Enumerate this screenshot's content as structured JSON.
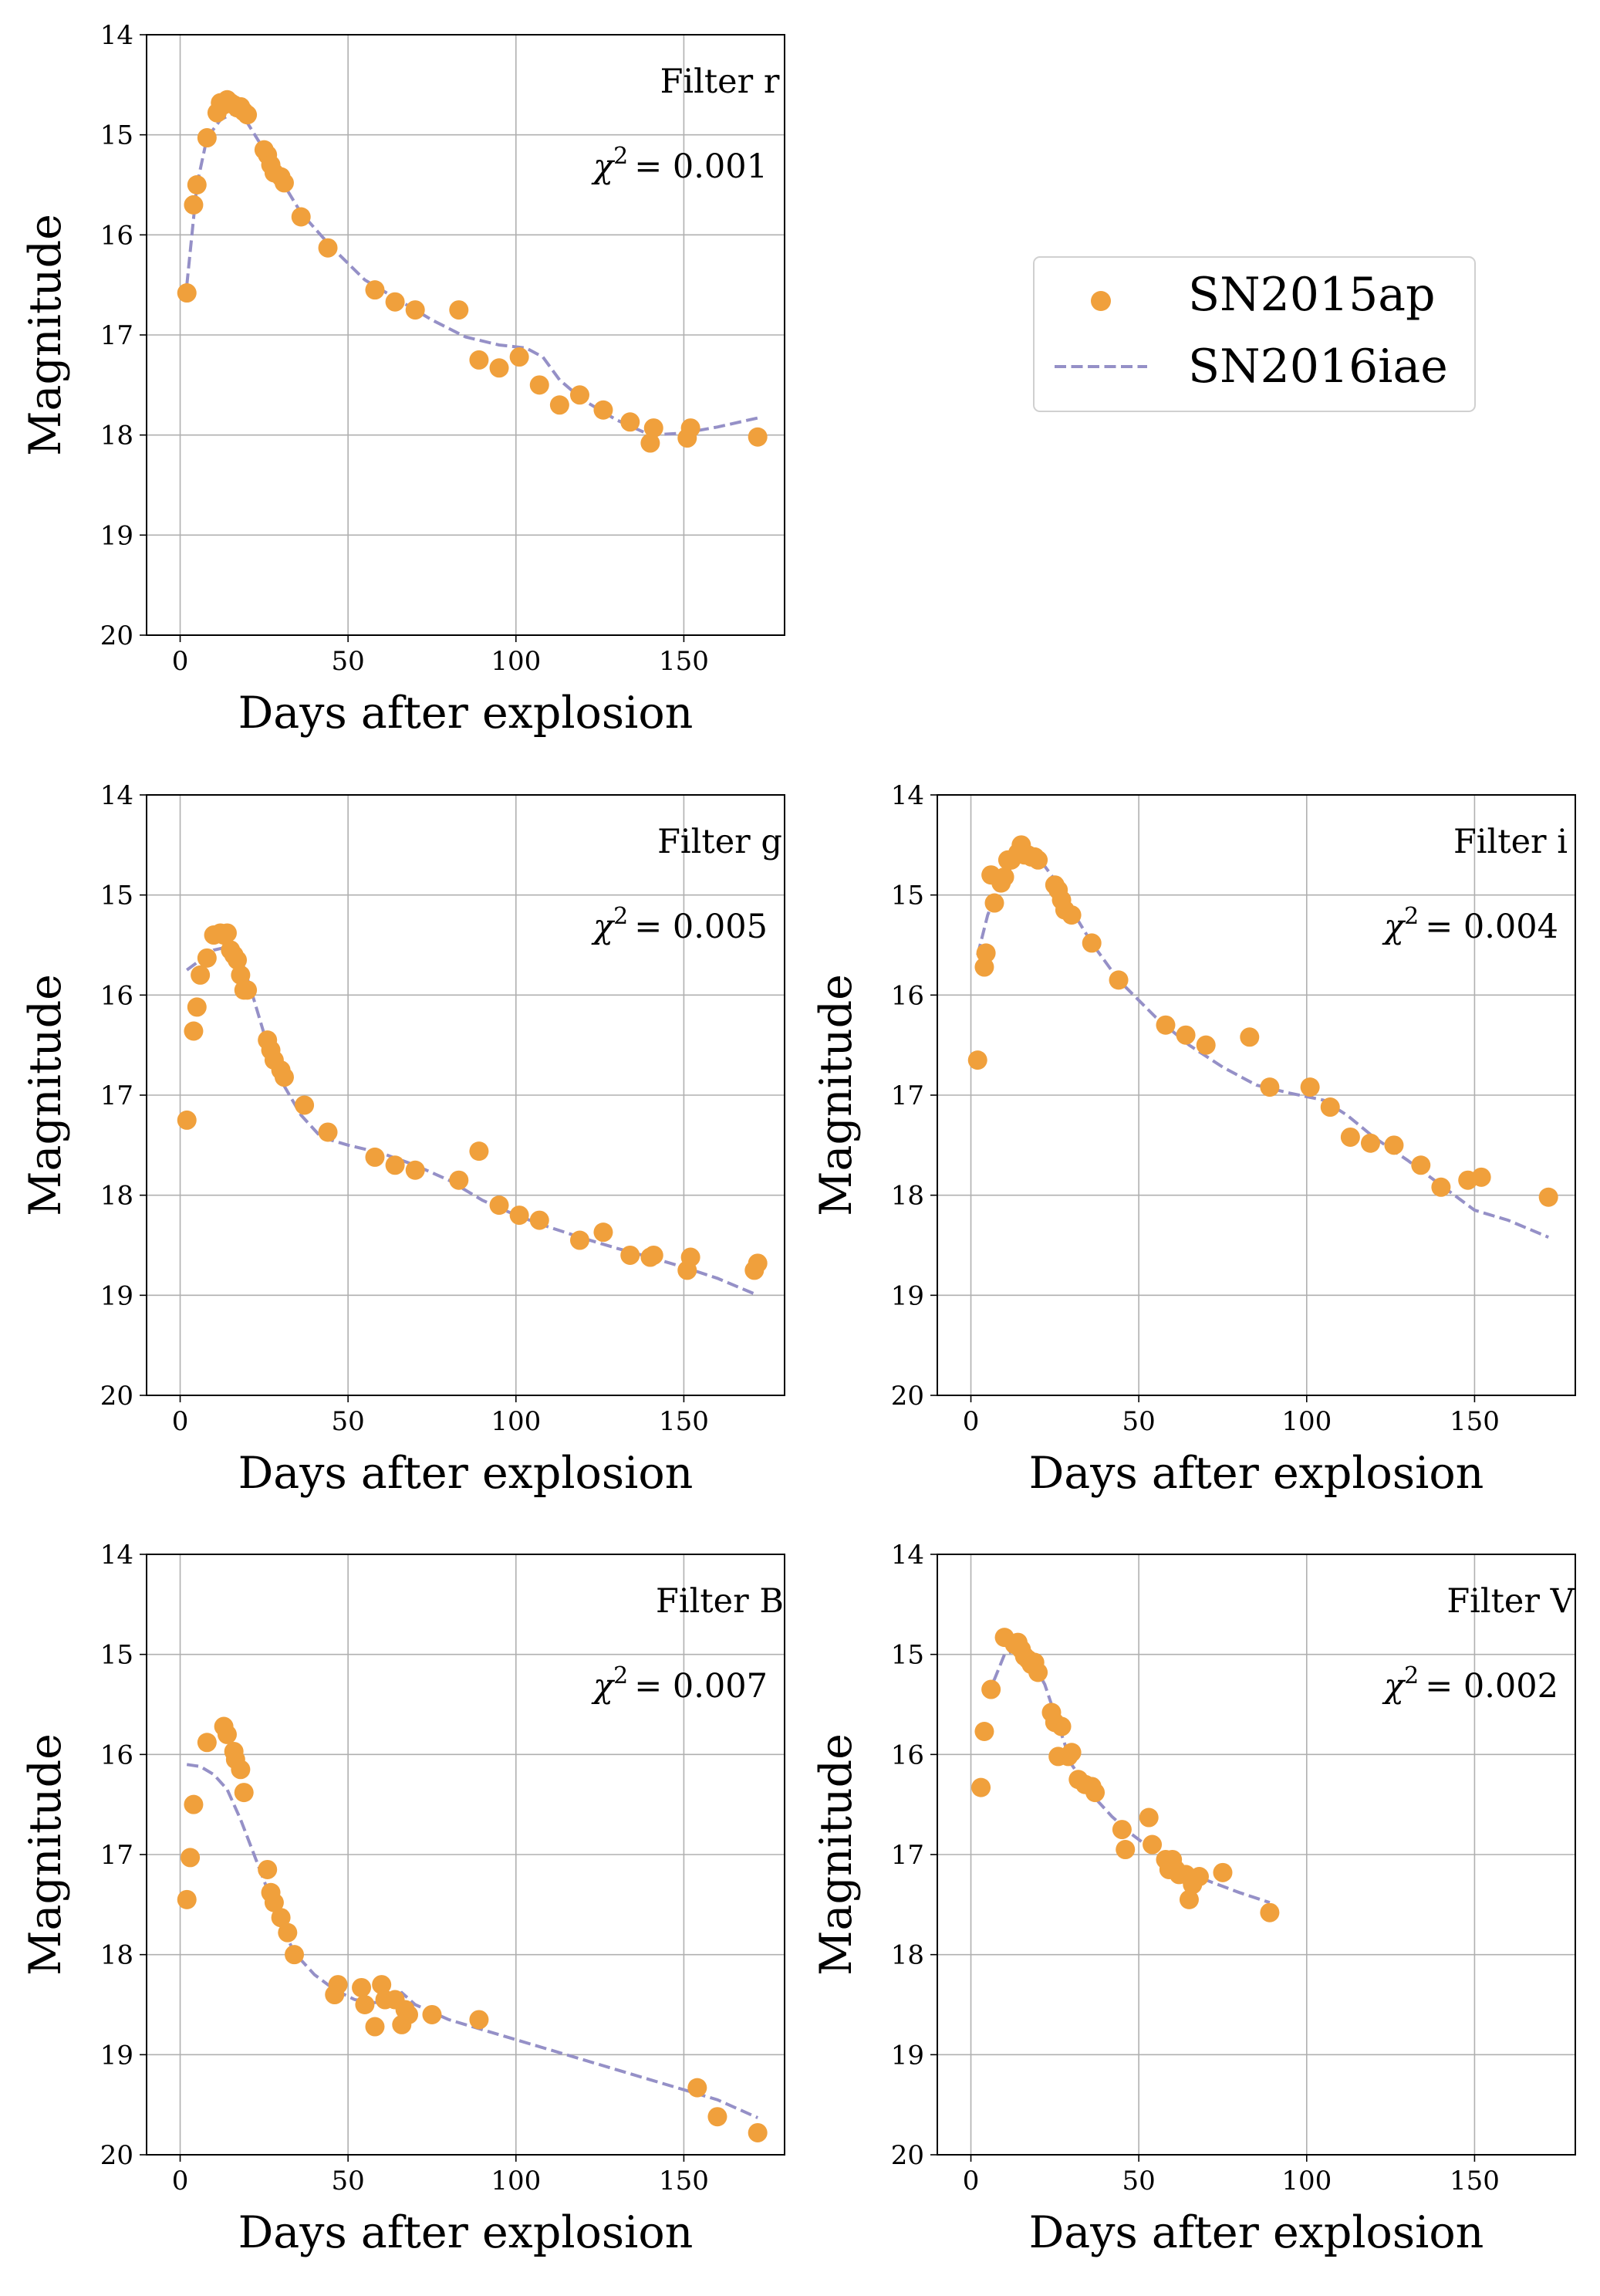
{
  "colors": {
    "point": "#f0a03c",
    "line": "#9590c7",
    "grid": "#b0b0b0",
    "axis": "#000000"
  },
  "legend": {
    "entries": [
      {
        "label": "SN2015ap",
        "kind": "marker"
      },
      {
        "label": "SN2016iae",
        "kind": "dashed-line"
      }
    ]
  },
  "chart_data": [
    {
      "type": "scatter",
      "panel": "r",
      "filter_label": "Filter r",
      "chi2_value": "= 0.001",
      "xlabel": "Days after explosion",
      "ylabel": "Magnitude",
      "xlim": [
        -10,
        180
      ],
      "ylim": [
        20,
        14
      ],
      "y_inverted": true,
      "xticks": [
        0,
        50,
        100,
        150
      ],
      "yticks": [
        14,
        15,
        16,
        17,
        18,
        19,
        20
      ],
      "grid": true,
      "series": [
        {
          "name": "SN2015ap",
          "kind": "scatter",
          "x": [
            2,
            4,
            5,
            8,
            11,
            12,
            13,
            14,
            15,
            16,
            17,
            18,
            19,
            20,
            25,
            26,
            27,
            28,
            30,
            31,
            36,
            44,
            58,
            64,
            70,
            83,
            89,
            95,
            101,
            107,
            113,
            119,
            126,
            134,
            140,
            141,
            151,
            152,
            172
          ],
          "y": [
            16.58,
            15.7,
            15.5,
            15.03,
            14.78,
            14.68,
            14.7,
            14.65,
            14.68,
            14.7,
            14.73,
            14.72,
            14.77,
            14.8,
            15.15,
            15.2,
            15.3,
            15.38,
            15.42,
            15.48,
            15.82,
            16.13,
            16.55,
            16.67,
            16.75,
            16.75,
            17.25,
            17.33,
            17.22,
            17.5,
            17.7,
            17.6,
            17.75,
            17.87,
            18.08,
            17.93,
            18.03,
            17.93,
            18.02
          ]
        },
        {
          "name": "SN2016iae",
          "kind": "line",
          "x": [
            2,
            5,
            8,
            12,
            16,
            20,
            25,
            30,
            36,
            45,
            55,
            65,
            75,
            85,
            95,
            103,
            108,
            113,
            120,
            130,
            140,
            150,
            160,
            172
          ],
          "y": [
            16.5,
            15.5,
            15.03,
            14.85,
            14.78,
            14.88,
            15.15,
            15.45,
            15.78,
            16.12,
            16.45,
            16.65,
            16.85,
            17.02,
            17.1,
            17.13,
            17.22,
            17.45,
            17.65,
            17.85,
            18.0,
            17.98,
            17.92,
            17.83
          ]
        }
      ]
    },
    {
      "type": "scatter",
      "panel": "g",
      "filter_label": "Filter g",
      "chi2_value": "= 0.005",
      "xlabel": "Days after explosion",
      "ylabel": "Magnitude",
      "xlim": [
        -10,
        180
      ],
      "ylim": [
        20,
        14
      ],
      "y_inverted": true,
      "xticks": [
        0,
        50,
        100,
        150
      ],
      "yticks": [
        14,
        15,
        16,
        17,
        18,
        19,
        20
      ],
      "grid": true,
      "series": [
        {
          "name": "SN2015ap",
          "kind": "scatter",
          "x": [
            2,
            4,
            5,
            6,
            8,
            10,
            12,
            13,
            14,
            15,
            16,
            17,
            18,
            19,
            20,
            26,
            27,
            28,
            30,
            31,
            37,
            44,
            58,
            64,
            70,
            83,
            89,
            95,
            101,
            107,
            119,
            126,
            134,
            140,
            141,
            151,
            152,
            171,
            172
          ],
          "y": [
            17.25,
            16.36,
            16.12,
            15.8,
            15.63,
            15.4,
            15.38,
            15.4,
            15.38,
            15.55,
            15.6,
            15.65,
            15.8,
            15.95,
            15.95,
            16.45,
            16.55,
            16.65,
            16.75,
            16.82,
            17.1,
            17.37,
            17.62,
            17.7,
            17.75,
            17.85,
            17.56,
            18.1,
            18.2,
            18.25,
            18.45,
            18.37,
            18.6,
            18.62,
            18.6,
            18.75,
            18.62,
            18.75,
            18.68
          ]
        },
        {
          "name": "SN2016iae",
          "kind": "line",
          "x": [
            2,
            6,
            10,
            14,
            18,
            22,
            26,
            30,
            36,
            42,
            50,
            60,
            70,
            80,
            90,
            100,
            110,
            120,
            130,
            140,
            150,
            160,
            172
          ],
          "y": [
            15.75,
            15.65,
            15.55,
            15.52,
            15.62,
            16.05,
            16.5,
            16.85,
            17.2,
            17.42,
            17.5,
            17.58,
            17.7,
            17.85,
            18.05,
            18.2,
            18.32,
            18.43,
            18.53,
            18.62,
            18.72,
            18.83,
            19.0
          ]
        }
      ]
    },
    {
      "type": "scatter",
      "panel": "i",
      "filter_label": "Filter i",
      "chi2_value": "= 0.004",
      "xlabel": "Days after explosion",
      "ylabel": "Magnitude",
      "xlim": [
        -10,
        180
      ],
      "ylim": [
        20,
        14
      ],
      "y_inverted": true,
      "xticks": [
        0,
        50,
        100,
        150
      ],
      "yticks": [
        14,
        15,
        16,
        17,
        18,
        19,
        20
      ],
      "grid": true,
      "series": [
        {
          "name": "SN2015ap",
          "kind": "scatter",
          "x": [
            2,
            4,
            4.5,
            6,
            7,
            9,
            10,
            11,
            12,
            14,
            15,
            16,
            17,
            18,
            19,
            20,
            25,
            26,
            27,
            28,
            30,
            36,
            44,
            58,
            64,
            70,
            83,
            89,
            101,
            107,
            113,
            119,
            126,
            134,
            140,
            148,
            152,
            172
          ],
          "y": [
            16.65,
            15.72,
            15.58,
            14.8,
            15.08,
            14.88,
            14.82,
            14.65,
            14.65,
            14.58,
            14.5,
            14.6,
            14.6,
            14.62,
            14.62,
            14.65,
            14.9,
            14.95,
            15.05,
            15.15,
            15.2,
            15.48,
            15.85,
            16.3,
            16.4,
            16.5,
            16.42,
            16.92,
            16.92,
            17.12,
            17.42,
            17.48,
            17.5,
            17.7,
            17.92,
            17.85,
            17.82,
            18.02
          ]
        },
        {
          "name": "SN2016iae",
          "kind": "line",
          "x": [
            2,
            5,
            8,
            12,
            16,
            20,
            25,
            30,
            36,
            44,
            55,
            65,
            75,
            85,
            95,
            105,
            112,
            120,
            130,
            140,
            150,
            160,
            172
          ],
          "y": [
            15.6,
            15.2,
            14.95,
            14.72,
            14.6,
            14.62,
            14.85,
            15.15,
            15.48,
            15.85,
            16.22,
            16.5,
            16.72,
            16.9,
            16.98,
            17.05,
            17.2,
            17.42,
            17.65,
            17.9,
            18.15,
            18.25,
            18.42
          ]
        }
      ]
    },
    {
      "type": "scatter",
      "panel": "B",
      "filter_label": "Filter B",
      "chi2_value": "= 0.007",
      "xlabel": "Days after explosion",
      "ylabel": "Magnitude",
      "xlim": [
        -10,
        180
      ],
      "ylim": [
        20,
        14
      ],
      "y_inverted": true,
      "xticks": [
        0,
        50,
        100,
        150
      ],
      "yticks": [
        14,
        15,
        16,
        17,
        18,
        19,
        20
      ],
      "grid": true,
      "series": [
        {
          "name": "SN2015ap",
          "kind": "scatter",
          "x": [
            2,
            3,
            4,
            8,
            13,
            14,
            16,
            16.5,
            18,
            19,
            26,
            27,
            28,
            30,
            32,
            34,
            46,
            47,
            54,
            55,
            58,
            60,
            61,
            64,
            66,
            67,
            68,
            75,
            89,
            154,
            160,
            172
          ],
          "y": [
            17.45,
            17.03,
            16.5,
            15.88,
            15.72,
            15.8,
            15.97,
            16.05,
            16.15,
            16.38,
            17.15,
            17.38,
            17.48,
            17.63,
            17.78,
            18.0,
            18.4,
            18.3,
            18.33,
            18.5,
            18.72,
            18.3,
            18.45,
            18.45,
            18.7,
            18.55,
            18.6,
            18.6,
            18.65,
            19.33,
            19.62,
            19.78
          ]
        },
        {
          "name": "SN2016iae",
          "kind": "line",
          "x": [
            2,
            6,
            10,
            14,
            18,
            22,
            26,
            30,
            34,
            40,
            46,
            52,
            58,
            62,
            66,
            70,
            80,
            100,
            120,
            140,
            160,
            172
          ],
          "y": [
            16.1,
            16.12,
            16.2,
            16.35,
            16.65,
            17.0,
            17.35,
            17.7,
            17.98,
            18.2,
            18.35,
            18.45,
            18.48,
            18.45,
            18.38,
            18.5,
            18.65,
            18.85,
            19.05,
            19.25,
            19.45,
            19.63
          ]
        }
      ]
    },
    {
      "type": "scatter",
      "panel": "V",
      "filter_label": "Filter V",
      "chi2_value": "= 0.002",
      "xlabel": "Days after explosion",
      "ylabel": "Magnitude",
      "xlim": [
        -10,
        180
      ],
      "ylim": [
        20,
        14
      ],
      "y_inverted": true,
      "xticks": [
        0,
        50,
        100,
        150
      ],
      "yticks": [
        14,
        15,
        16,
        17,
        18,
        19,
        20
      ],
      "grid": true,
      "series": [
        {
          "name": "SN2015ap",
          "kind": "scatter",
          "x": [
            3,
            4,
            6,
            10,
            13,
            14,
            15,
            16,
            17,
            18,
            19,
            20,
            24,
            25,
            26,
            27,
            29,
            30,
            32,
            34,
            36,
            37,
            45,
            46,
            53,
            54,
            58,
            59,
            60,
            61,
            62,
            64,
            65,
            66,
            68,
            75,
            89
          ],
          "y": [
            16.33,
            15.77,
            15.35,
            14.83,
            14.9,
            14.88,
            14.95,
            15.02,
            15.05,
            15.1,
            15.08,
            15.18,
            15.58,
            15.68,
            16.02,
            15.72,
            16.02,
            15.98,
            16.25,
            16.3,
            16.32,
            16.38,
            16.75,
            16.95,
            16.63,
            16.9,
            17.05,
            17.15,
            17.05,
            17.15,
            17.2,
            17.2,
            17.45,
            17.3,
            17.22,
            17.18,
            17.58
          ]
        },
        {
          "name": "SN2016iae",
          "kind": "line",
          "x": [
            4,
            7,
            10,
            14,
            18,
            22,
            26,
            30,
            36,
            42,
            48,
            54,
            60,
            66,
            72,
            80,
            89
          ],
          "y": [
            15.4,
            15.25,
            15.0,
            14.95,
            15.05,
            15.3,
            15.7,
            16.1,
            16.4,
            16.62,
            16.8,
            16.95,
            17.1,
            17.2,
            17.28,
            17.38,
            17.48
          ]
        }
      ]
    }
  ]
}
